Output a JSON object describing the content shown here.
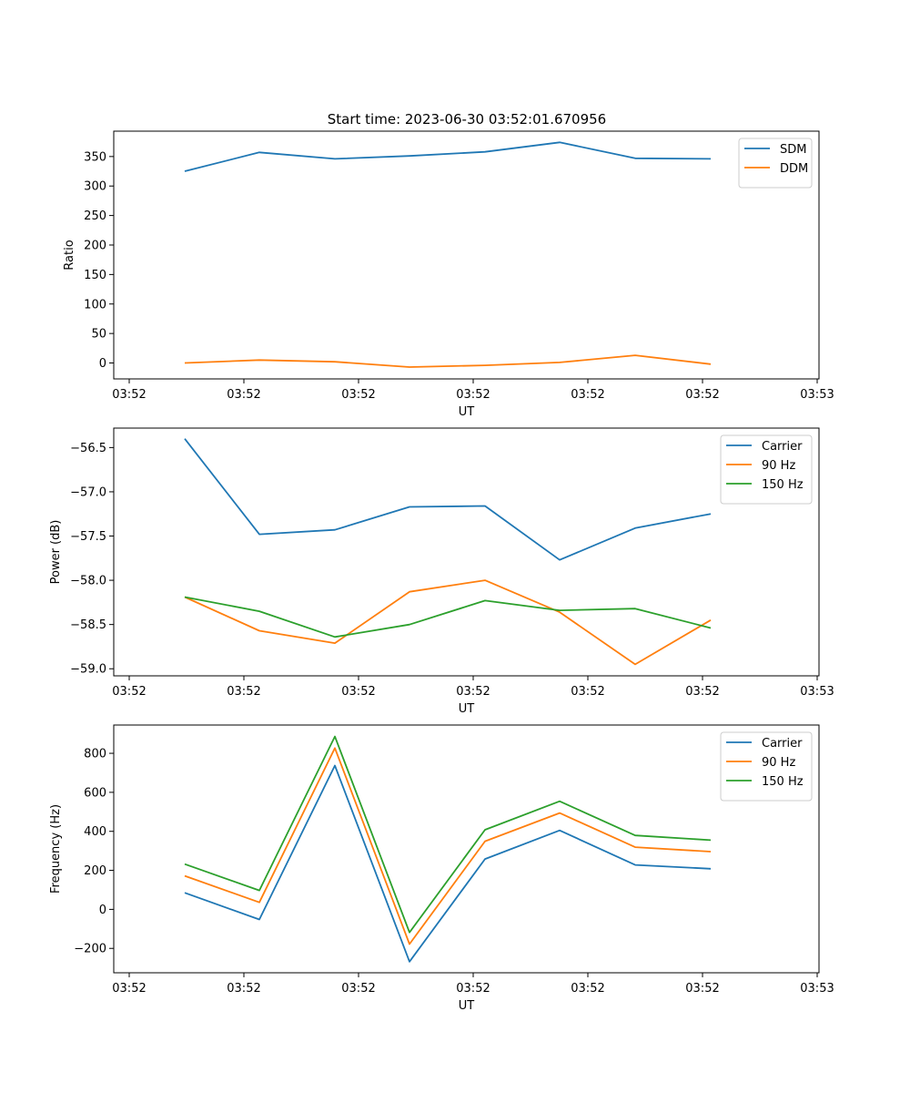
{
  "figure_title": "Start time: 2023-06-30 03:52:01.670956",
  "chart_data": [
    {
      "type": "line",
      "title": "Start time: 2023-06-30 03:52:01.670956",
      "xlabel": "UT",
      "ylabel": "Ratio",
      "x_tick_labels": [
        "03:52",
        "03:52",
        "03:52",
        "03:52",
        "03:52",
        "03:52",
        "03:53"
      ],
      "y_ticks": [
        0,
        50,
        100,
        150,
        200,
        250,
        300,
        350
      ],
      "ylim": [
        -27,
        393
      ],
      "grid": false,
      "legend_position": "top-right",
      "series": [
        {
          "name": "SDM",
          "color": "#1f77b4",
          "values": [
            325,
            357,
            346,
            351,
            358,
            374,
            347,
            346
          ]
        },
        {
          "name": "DDM",
          "color": "#ff7f0e",
          "values": [
            0,
            5,
            2,
            -7,
            -4,
            1,
            13,
            -2
          ]
        }
      ]
    },
    {
      "type": "line",
      "title": "",
      "xlabel": "UT",
      "ylabel": "Power (dB)",
      "x_tick_labels": [
        "03:52",
        "03:52",
        "03:52",
        "03:52",
        "03:52",
        "03:52",
        "03:53"
      ],
      "y_ticks": [
        -59.0,
        -58.5,
        -58.0,
        -57.5,
        -57.0,
        -56.5
      ],
      "y_tick_labels": [
        "−59.0",
        "−58.5",
        "−58.0",
        "−57.5",
        "−57.0",
        "−56.5"
      ],
      "ylim": [
        -59.08,
        -56.28
      ],
      "grid": false,
      "legend_position": "top-right",
      "series": [
        {
          "name": "Carrier",
          "color": "#1f77b4",
          "values": [
            -56.4,
            -57.48,
            -57.43,
            -57.17,
            -57.16,
            -57.77,
            -57.41,
            -57.25
          ]
        },
        {
          "name": "90 Hz",
          "color": "#ff7f0e",
          "values": [
            -58.19,
            -58.57,
            -58.71,
            -58.13,
            -58.0,
            -58.36,
            -58.95,
            -58.45
          ]
        },
        {
          "name": "150 Hz",
          "color": "#2ca02c",
          "values": [
            -58.19,
            -58.35,
            -58.64,
            -58.5,
            -58.23,
            -58.34,
            -58.32,
            -58.54
          ]
        }
      ]
    },
    {
      "type": "line",
      "title": "",
      "xlabel": "UT",
      "ylabel": "Frequency (Hz)",
      "x_tick_labels": [
        "03:52",
        "03:52",
        "03:52",
        "03:52",
        "03:52",
        "03:52",
        "03:53"
      ],
      "y_ticks": [
        -200,
        0,
        200,
        400,
        600,
        800
      ],
      "y_tick_labels": [
        "−200",
        "0",
        "200",
        "400",
        "600",
        "800"
      ],
      "ylim": [
        -325,
        945
      ],
      "grid": false,
      "legend_position": "top-right",
      "series": [
        {
          "name": "Carrier",
          "color": "#1f77b4",
          "values": [
            85,
            -52,
            737,
            -268,
            258,
            405,
            228,
            208
          ]
        },
        {
          "name": "90 Hz",
          "color": "#ff7f0e",
          "values": [
            172,
            36,
            827,
            -178,
            349,
            494,
            319,
            296
          ]
        },
        {
          "name": "150 Hz",
          "color": "#2ca02c",
          "values": [
            232,
            97,
            886,
            -118,
            408,
            554,
            379,
            355
          ]
        }
      ]
    }
  ]
}
